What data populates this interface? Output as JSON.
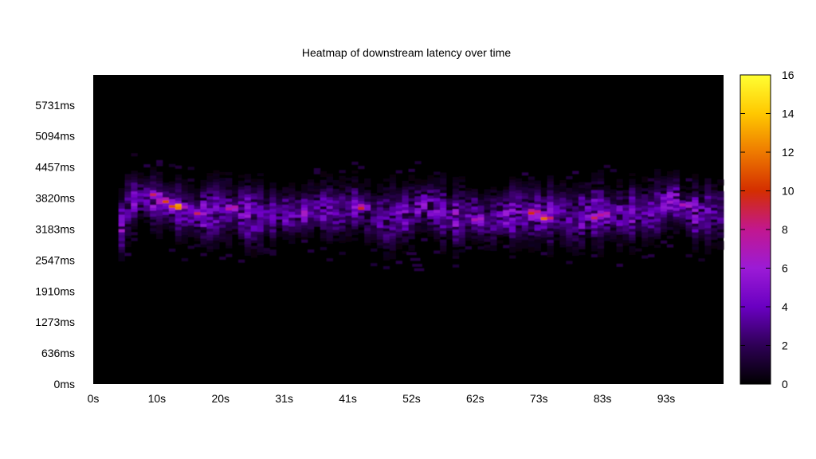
{
  "chart_data": {
    "type": "heatmap",
    "title": "Heatmap of downstream latency over time",
    "x_ticks": [
      "0s",
      "10s",
      "20s",
      "31s",
      "41s",
      "52s",
      "62s",
      "73s",
      "83s",
      "93s"
    ],
    "x_tick_values": [
      0,
      10.1,
      20.2,
      30.3,
      40.4,
      50.5,
      60.6,
      70.7,
      80.8,
      90.9
    ],
    "y_ticks": [
      "0ms",
      "636ms",
      "1273ms",
      "1910ms",
      "2547ms",
      "3183ms",
      "3820ms",
      "4457ms",
      "5094ms",
      "5731ms"
    ],
    "y_tick_values": [
      0,
      636,
      1273,
      1910,
      2547,
      3183,
      3820,
      4457,
      5094,
      5731
    ],
    "xlim": [
      0,
      100
    ],
    "ylim": [
      0,
      6350
    ],
    "colorbar": {
      "range": [
        0,
        16
      ],
      "ticks": [
        "0",
        "2",
        "4",
        "6",
        "8",
        "10",
        "12",
        "14",
        "16"
      ],
      "tick_values": [
        0,
        2,
        4,
        6,
        8,
        10,
        12,
        14,
        16
      ],
      "colors": [
        "#000000",
        "#2e0055",
        "#6a00c2",
        "#9b1bd6",
        "#c2178f",
        "#d42e00",
        "#ee7a00",
        "#ffc800",
        "#ffff33"
      ]
    },
    "background_color": "#000000",
    "hot_spots": [
      {
        "x": 12.8,
        "y": 3620,
        "count": 15
      },
      {
        "x": 10.8,
        "y": 3730,
        "count": 11
      },
      {
        "x": 9.2,
        "y": 3860,
        "count": 9
      },
      {
        "x": 16.2,
        "y": 3480,
        "count": 9
      },
      {
        "x": 21.5,
        "y": 3590,
        "count": 9
      },
      {
        "x": 42.0,
        "y": 3600,
        "count": 10
      },
      {
        "x": 69.3,
        "y": 3500,
        "count": 11
      },
      {
        "x": 71.2,
        "y": 3380,
        "count": 12
      },
      {
        "x": 79.0,
        "y": 3400,
        "count": 9
      },
      {
        "x": 80.5,
        "y": 3460,
        "count": 9
      },
      {
        "x": 93.5,
        "y": 3650,
        "count": 8
      },
      {
        "x": 60.5,
        "y": 3350,
        "count": 8
      }
    ],
    "band_center": [
      [
        4,
        3050
      ],
      [
        5,
        3400
      ],
      [
        6,
        3750
      ],
      [
        8,
        3800
      ],
      [
        10,
        3700
      ],
      [
        12,
        3620
      ],
      [
        14,
        3550
      ],
      [
        16,
        3460
      ],
      [
        18,
        3450
      ],
      [
        20,
        3560
      ],
      [
        22,
        3550
      ],
      [
        24,
        3480
      ],
      [
        26,
        3400
      ],
      [
        28,
        3450
      ],
      [
        30,
        3500
      ],
      [
        32,
        3450
      ],
      [
        34,
        3500
      ],
      [
        36,
        3600
      ],
      [
        38,
        3500
      ],
      [
        40,
        3550
      ],
      [
        42,
        3600
      ],
      [
        44,
        3450
      ],
      [
        46,
        3350
      ],
      [
        48,
        3400
      ],
      [
        50,
        3450
      ],
      [
        52,
        3650
      ],
      [
        54,
        3600
      ],
      [
        56,
        3450
      ],
      [
        58,
        3380
      ],
      [
        60,
        3500
      ],
      [
        62,
        3300
      ],
      [
        64,
        3400
      ],
      [
        66,
        3450
      ],
      [
        68,
        3500
      ],
      [
        70,
        3450
      ],
      [
        72,
        3400
      ],
      [
        74,
        3500
      ],
      [
        76,
        3300
      ],
      [
        78,
        3450
      ],
      [
        80,
        3500
      ],
      [
        82,
        3450
      ],
      [
        84,
        3400
      ],
      [
        86,
        3500
      ],
      [
        88,
        3450
      ],
      [
        90,
        3600
      ],
      [
        92,
        3800
      ],
      [
        94,
        3500
      ],
      [
        96,
        3450
      ],
      [
        98,
        3500
      ],
      [
        100,
        3450
      ]
    ]
  }
}
